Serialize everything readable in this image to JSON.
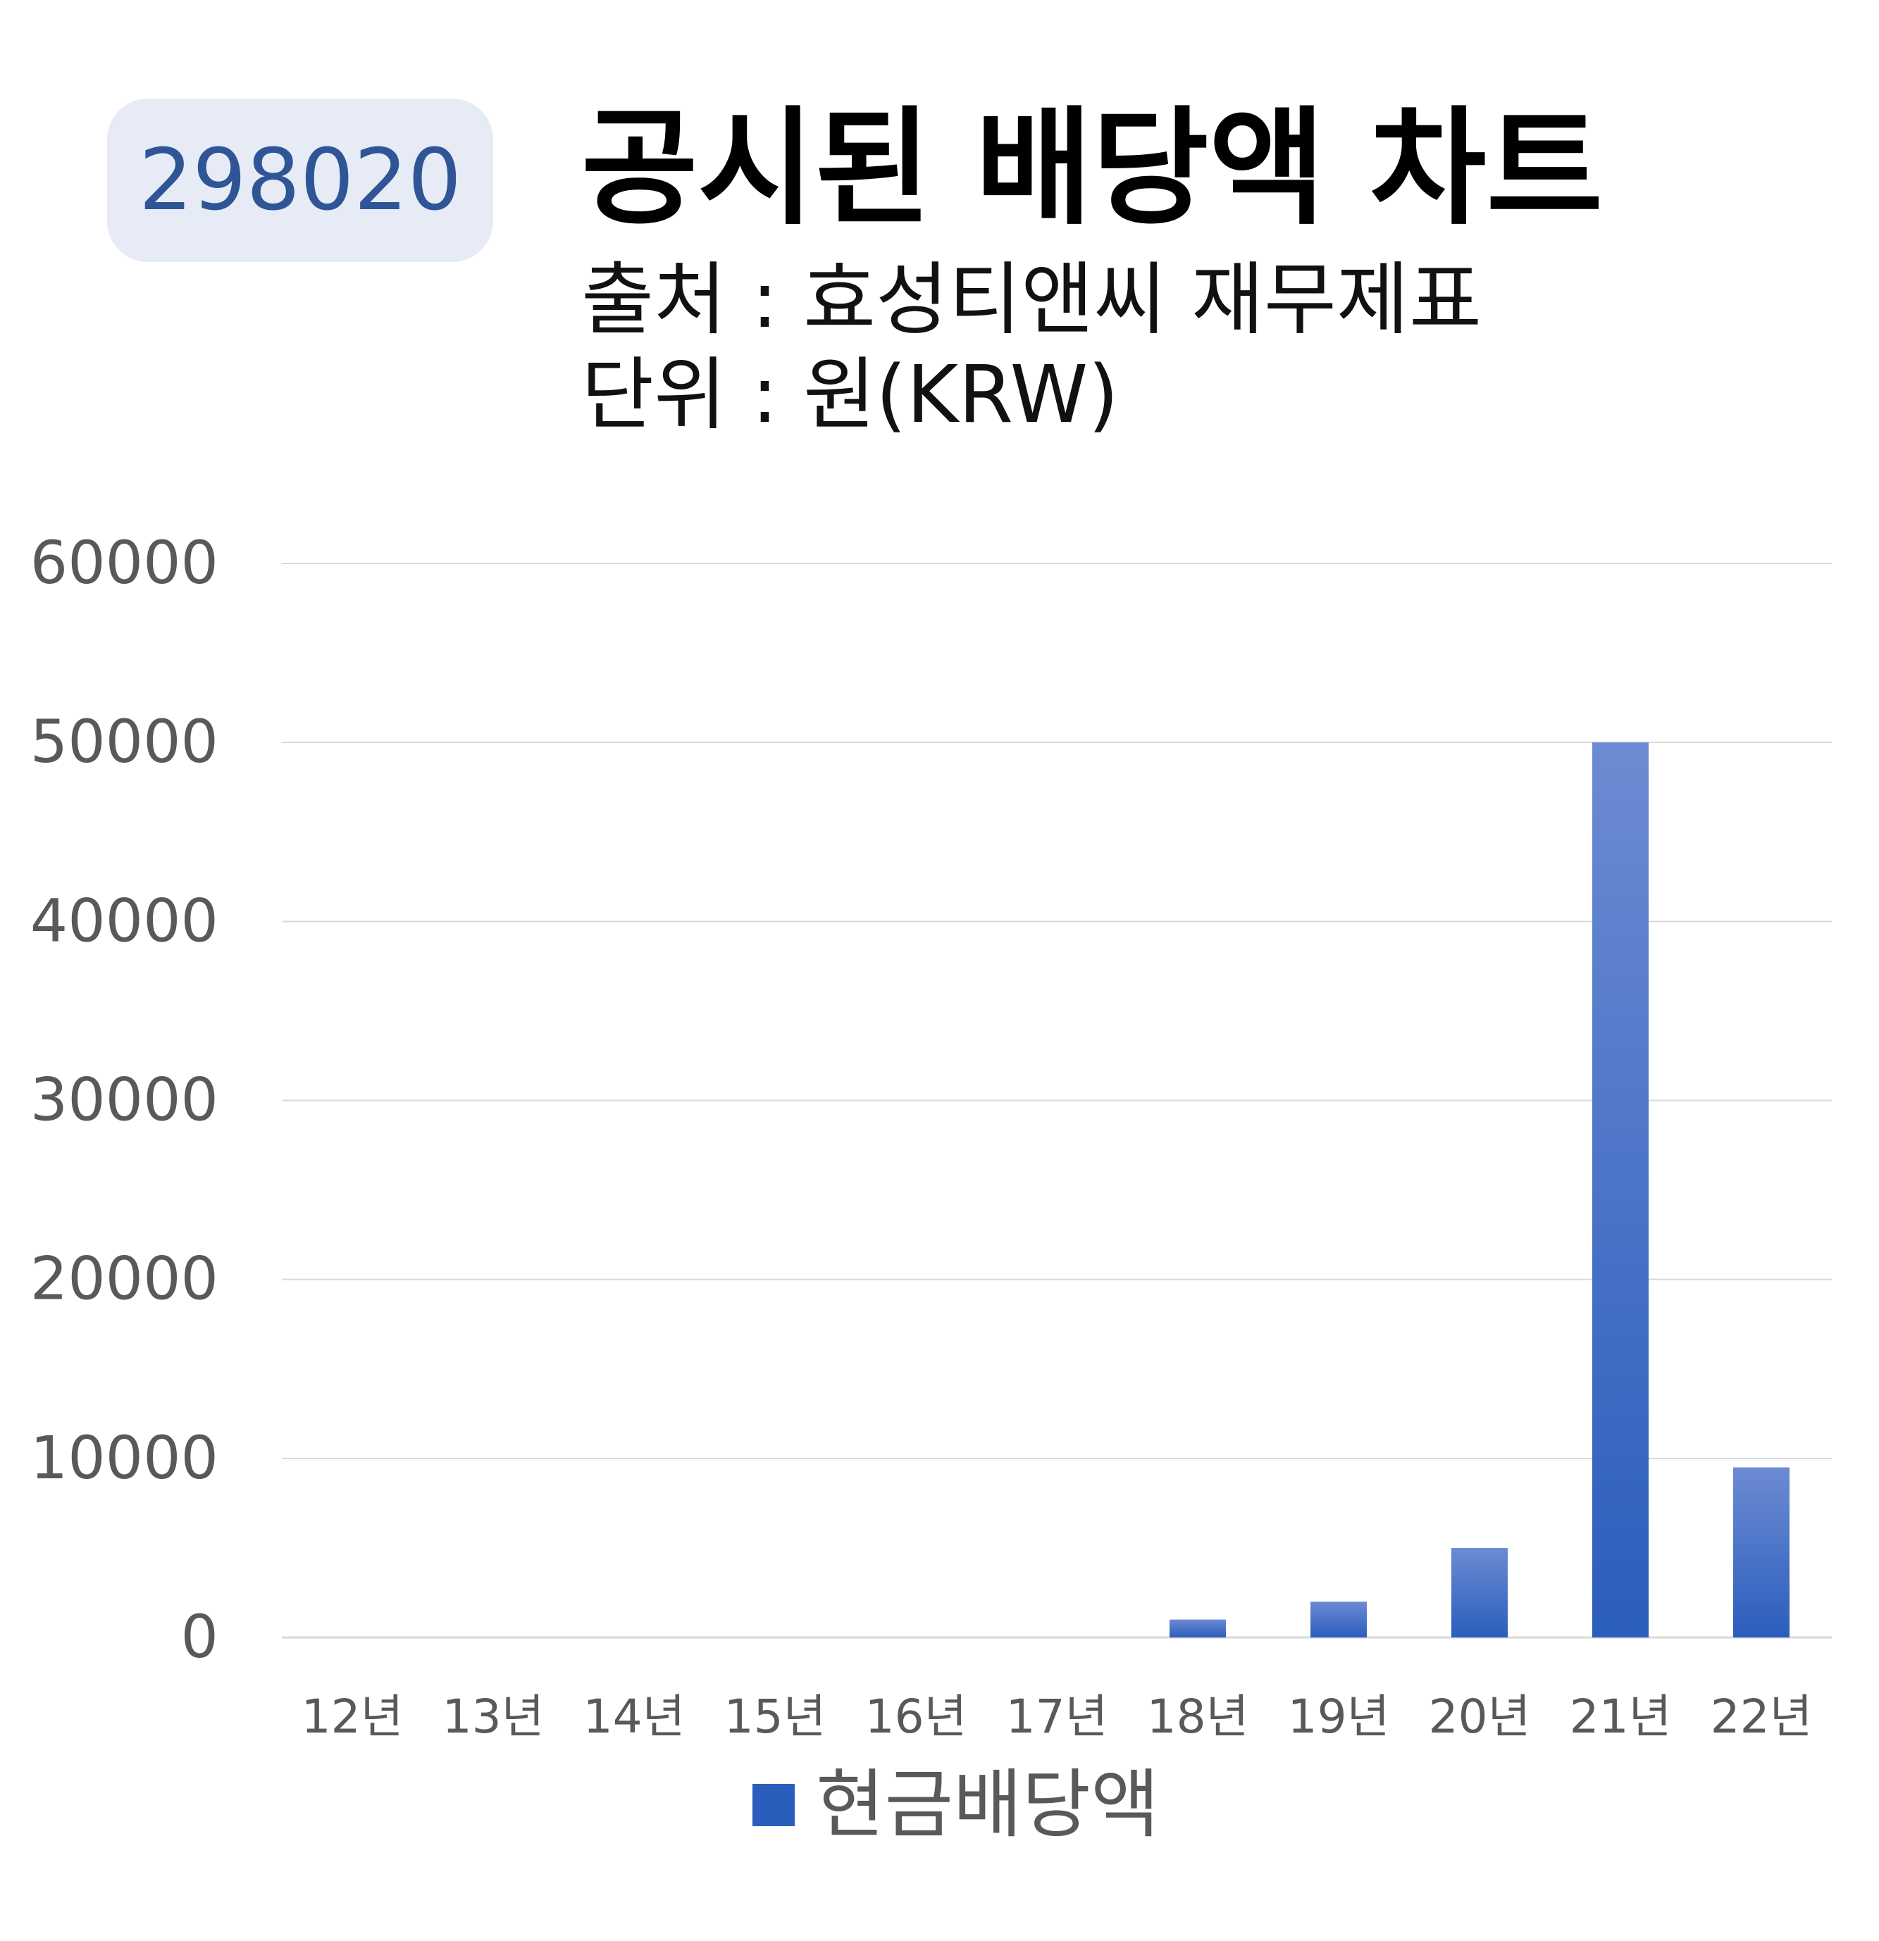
{
  "badge": {
    "code": "298020"
  },
  "header": {
    "title": "공시된 배당액 차트",
    "source": "출처 : 효성티앤씨 재무제표",
    "unit": "단위 : 원(KRW)"
  },
  "colors": {
    "bar_top": "#6c8bd2",
    "bar_bottom": "#2b5dbd",
    "grid": "#d9d9d9",
    "axis_text": "#595959",
    "badge_bg": "#e6ebf5",
    "badge_text": "#2f5597"
  },
  "chart_data": {
    "type": "bar",
    "categories": [
      "12년",
      "13년",
      "14년",
      "15년",
      "16년",
      "17년",
      "18년",
      "19년",
      "20년",
      "21년",
      "22년"
    ],
    "series": [
      {
        "name": "현금배당액",
        "values": [
          0,
          0,
          0,
          0,
          0,
          0,
          1000,
          2000,
          5000,
          50000,
          9500
        ]
      }
    ],
    "ylim": [
      0,
      60000
    ],
    "yticks": [
      "0",
      "10000",
      "20000",
      "30000",
      "40000",
      "50000",
      "60000"
    ],
    "grid": true,
    "legend": "bottom"
  }
}
